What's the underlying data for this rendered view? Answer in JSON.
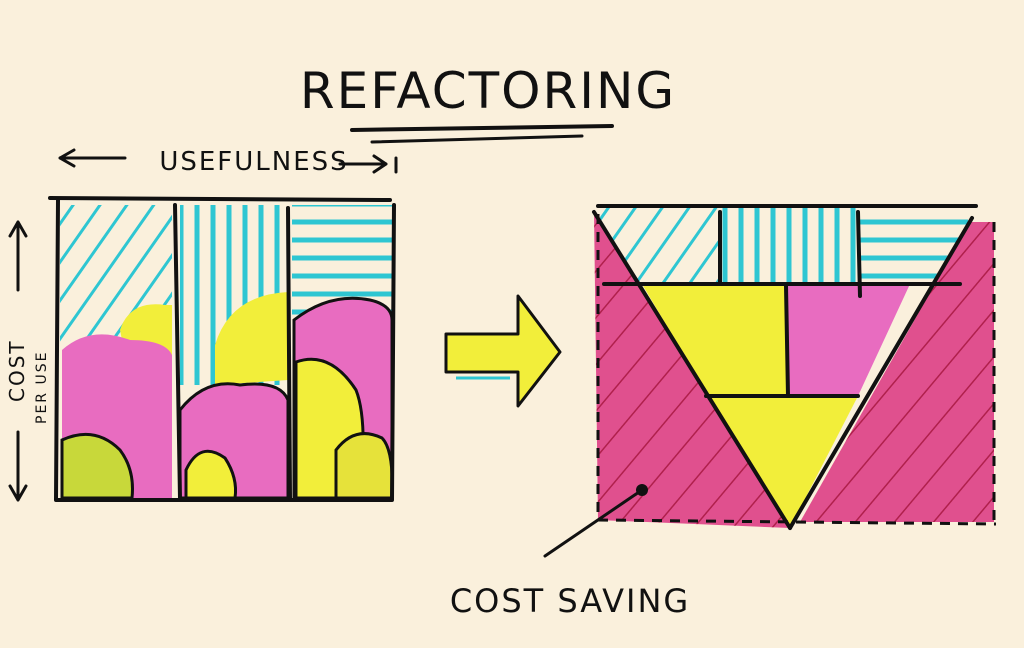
{
  "title": "REFACTORING",
  "x_axis_label": "USEFULNESS",
  "y_axis_label_line1": "COST",
  "y_axis_label_line2": "PER USE",
  "annotation": "COST SAVING",
  "colors": {
    "paper": "#faf0dc",
    "cyan": "#2ec6d2",
    "pink": "#e86cc0",
    "magenta": "#e0508e",
    "yellow": "#f2ee3a",
    "yellow_green": "#c8d83a",
    "ink": "#111111"
  },
  "icons": [
    "left-arrow-icon",
    "right-arrow-icon",
    "up-arrow-icon",
    "down-arrow-icon",
    "transform-arrow-icon"
  ]
}
